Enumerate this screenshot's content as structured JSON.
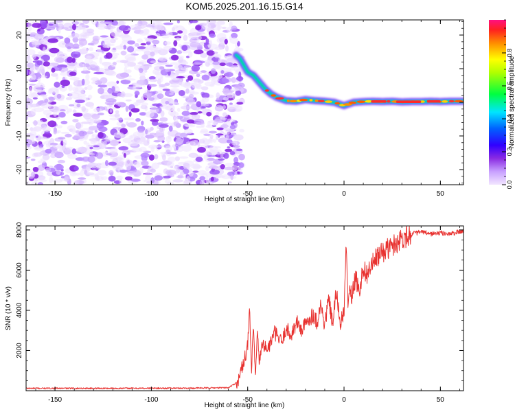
{
  "figure": {
    "title": "KOM5.2025.201.16.15.G14"
  },
  "chart_data": [
    {
      "type": "heatmap",
      "title": "KOM5.2025.201.16.15.G14",
      "xlabel": "Height of straight line (km)",
      "ylabel": "Frequency (Hz)",
      "xlim": [
        -165,
        62
      ],
      "ylim": [
        -24.5,
        24.5
      ],
      "x_ticks": [
        -150,
        -100,
        -50,
        0,
        50
      ],
      "y_ticks": [
        -20,
        -10,
        0,
        10,
        20
      ],
      "grid": false,
      "colorbar": {
        "label": "Normalized spectral amplitude",
        "range": [
          0,
          1
        ],
        "ticks": [
          0.0,
          0.2,
          0.4,
          0.6,
          0.8
        ],
        "colormap": [
          "#e8d0ff",
          "#8a2be2",
          "#0000ff",
          "#00ffff",
          "#00ff00",
          "#ffff00",
          "#ff8c00",
          "#ff0000",
          "#ff1493"
        ]
      },
      "noise_region": {
        "x_range": [
          -165,
          -56
        ],
        "amplitude_range": [
          0.0,
          0.15
        ]
      },
      "signal_ridge": {
        "x": [
          -56,
          -54,
          -52,
          -50,
          -47,
          -44,
          -41,
          -38,
          -35,
          -30,
          -25,
          -20,
          -15,
          -10,
          -5,
          0,
          5,
          10,
          15,
          20,
          25,
          30,
          35,
          40,
          45,
          50,
          55,
          62
        ],
        "frequency": [
          14,
          13,
          11,
          9,
          8,
          6,
          4,
          2.5,
          1.5,
          0.5,
          0.3,
          0.8,
          0.5,
          0.3,
          0.0,
          -1.0,
          0.0,
          0.2,
          0.3,
          0.2,
          0.3,
          0.1,
          0.2,
          0.2,
          0.3,
          0.2,
          0.3,
          0.3
        ]
      }
    },
    {
      "type": "line",
      "title": "",
      "xlabel": "Height of straight line (km)",
      "ylabel": "SNR (10 * v/v)",
      "xlim": [
        -165,
        62
      ],
      "ylim": [
        0,
        8200
      ],
      "x_ticks": [
        -150,
        -100,
        -50,
        0,
        50
      ],
      "y_ticks": [
        2000,
        4000,
        6000,
        8000
      ],
      "grid": false,
      "series": [
        {
          "color": "#e8312f",
          "x": [
            -165,
            -120,
            -80,
            -60,
            -55,
            -52,
            -50,
            -49,
            -48,
            -47,
            -46,
            -45,
            -44,
            -42,
            -40,
            -38,
            -36,
            -34,
            -32,
            -30,
            -28,
            -26,
            -24,
            -22,
            -20,
            -18,
            -16,
            -14,
            -12,
            -10,
            -8,
            -6,
            -4,
            -2,
            0,
            1,
            2,
            3,
            4,
            6,
            8,
            10,
            12,
            14,
            16,
            18,
            20,
            25,
            30,
            35,
            40,
            45,
            50,
            55,
            62
          ],
          "y": [
            120,
            120,
            130,
            150,
            450,
            1500,
            2200,
            4050,
            900,
            3200,
            600,
            2800,
            1500,
            2400,
            2000,
            2400,
            2900,
            2600,
            2400,
            3200,
            2700,
            3100,
            3400,
            3000,
            3300,
            3600,
            3800,
            3400,
            4300,
            3200,
            4600,
            3300,
            4900,
            3400,
            3800,
            7300,
            4500,
            5000,
            4700,
            5600,
            5000,
            6100,
            5800,
            6200,
            6500,
            6700,
            6900,
            7200,
            7600,
            7800,
            7900,
            7800,
            7850,
            7800,
            7950
          ]
        }
      ]
    }
  ]
}
